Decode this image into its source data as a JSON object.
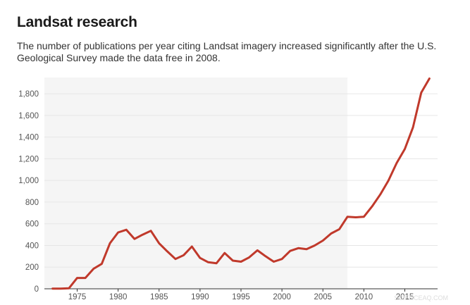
{
  "header": {
    "title": "Landsat research",
    "subtitle": "The number of publications per year citing Landsat imagery increased significantly after the U.S. Geological Survey made the data free in 2008."
  },
  "watermark": "SCIENCEAQ.COM",
  "colors": {
    "line": "#c0392b",
    "shade": "#f5f5f5",
    "grid": "#e6e6e6",
    "axis": "#333333"
  },
  "chart_data": {
    "type": "line",
    "title": "Landsat research",
    "xlabel": "",
    "ylabel": "",
    "xlim": [
      1971,
      2019
    ],
    "ylim": [
      0,
      1950
    ],
    "shaded_region": [
      1971,
      2008
    ],
    "grid": true,
    "legend": "none",
    "x_ticks": [
      1975,
      1980,
      1985,
      1990,
      1995,
      2000,
      2005,
      2010,
      2015
    ],
    "y_ticks": [
      0,
      200,
      400,
      600,
      800,
      1000,
      1200,
      1400,
      1600,
      1800
    ],
    "y_tick_labels": [
      "0",
      "200",
      "400",
      "600",
      "800",
      "1,000",
      "1,200",
      "1,400",
      "1,600",
      "1,800"
    ],
    "series": [
      {
        "x": [
          1972,
          1973,
          1974,
          1975,
          1976,
          1977,
          1978,
          1979,
          1980,
          1981,
          1982,
          1983,
          1984,
          1985,
          1986,
          1987,
          1988,
          1989,
          1990,
          1991,
          1992,
          1993,
          1994,
          1995,
          1996,
          1997,
          1998,
          1999,
          2000,
          2001,
          2002,
          2003,
          2004,
          2005,
          2006,
          2007,
          2008,
          2009,
          2010,
          2011,
          2012,
          2013,
          2014,
          2015,
          2016,
          2017,
          2018
        ],
        "values": [
          2,
          2,
          5,
          100,
          100,
          185,
          230,
          420,
          520,
          545,
          460,
          500,
          535,
          420,
          345,
          275,
          310,
          390,
          285,
          245,
          235,
          330,
          260,
          250,
          290,
          355,
          300,
          250,
          275,
          350,
          375,
          365,
          400,
          445,
          510,
          550,
          665,
          660,
          665,
          760,
          870,
          1000,
          1160,
          1290,
          1490,
          1810,
          1940
        ]
      }
    ]
  }
}
